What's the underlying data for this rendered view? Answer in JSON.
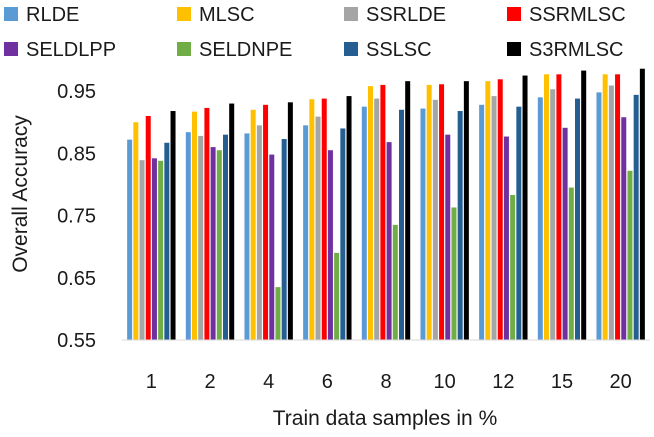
{
  "chart_data": {
    "type": "bar",
    "xlabel": "Train data samples in %",
    "ylabel": "Overall Accuracy",
    "ylim": [
      0.55,
      1.0
    ],
    "yticks": [
      0.55,
      0.65,
      0.75,
      0.85,
      0.95
    ],
    "ytick_labels": [
      "0.55",
      "0.65",
      "0.75",
      "0.85",
      "0.95"
    ],
    "categories": [
      "1",
      "2",
      "4",
      "6",
      "8",
      "10",
      "12",
      "15",
      "20"
    ],
    "grid": false,
    "legend_position": "top",
    "series": [
      {
        "name": "RLDE",
        "color": "#5b9bd5",
        "values": [
          0.872,
          0.884,
          0.882,
          0.895,
          0.925,
          0.922,
          0.928,
          0.94,
          0.948
        ]
      },
      {
        "name": "MLSC",
        "color": "#ffc000",
        "values": [
          0.9,
          0.917,
          0.92,
          0.937,
          0.958,
          0.96,
          0.966,
          0.977,
          0.977
        ]
      },
      {
        "name": "SSRLDE",
        "color": "#a5a5a5",
        "values": [
          0.839,
          0.878,
          0.895,
          0.909,
          0.938,
          0.936,
          0.942,
          0.953,
          0.959
        ]
      },
      {
        "name": "SSRMLSC",
        "color": "#ff0000",
        "values": [
          0.91,
          0.923,
          0.928,
          0.938,
          0.96,
          0.961,
          0.969,
          0.977,
          0.977
        ]
      },
      {
        "name": "SELDLPP",
        "color": "#7030a0",
        "values": [
          0.842,
          0.86,
          0.848,
          0.855,
          0.868,
          0.88,
          0.877,
          0.891,
          0.908
        ]
      },
      {
        "name": "SELDNPE",
        "color": "#70ad47",
        "values": [
          0.838,
          0.855,
          0.635,
          0.69,
          0.735,
          0.763,
          0.783,
          0.795,
          0.822
        ]
      },
      {
        "name": "SSLSC",
        "color": "#255e91",
        "values": [
          0.867,
          0.88,
          0.873,
          0.89,
          0.92,
          0.918,
          0.925,
          0.938,
          0.944
        ]
      },
      {
        "name": "S3RMLSC",
        "color": "#000000",
        "values": [
          0.918,
          0.93,
          0.932,
          0.942,
          0.966,
          0.966,
          0.975,
          0.983,
          0.986
        ]
      }
    ]
  }
}
